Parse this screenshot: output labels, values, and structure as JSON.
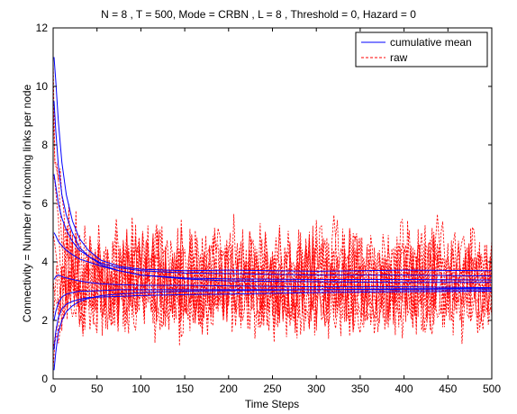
{
  "chart_data": {
    "type": "line",
    "title": "N = 8 , T = 500, Mode = CRBN , L = 8 , Threshold = 0, Hazard = 0",
    "xlabel": "Time Steps",
    "ylabel": "Connectivity = Number of incoming links per node",
    "xlim": [
      0,
      500
    ],
    "ylim": [
      0,
      12
    ],
    "xticks": [
      0,
      50,
      100,
      150,
      200,
      250,
      300,
      350,
      400,
      450,
      500
    ],
    "yticks": [
      0,
      2,
      4,
      6,
      8,
      10,
      12
    ],
    "grid": false,
    "legend_position": "top-right",
    "colors": {
      "cumulative_mean": "#0000ff",
      "raw": "#ff0000",
      "axes": "#000000"
    },
    "series": [
      {
        "name": "cumulative mean",
        "style": "solid",
        "color": "#0000ff",
        "runs": [
          {
            "x": [
              1,
              3,
              6,
              10,
              15,
              22,
              30,
              40,
              55,
              75,
              100,
              150,
              200,
              300,
              400,
              500
            ],
            "y": [
              11.0,
              10.2,
              8.8,
              7.4,
              6.3,
              5.4,
              4.8,
              4.4,
              4.05,
              3.85,
              3.75,
              3.7,
              3.72,
              3.68,
              3.72,
              3.7
            ]
          },
          {
            "x": [
              1,
              3,
              6,
              10,
              15,
              22,
              30,
              40,
              55,
              75,
              100,
              150,
              200,
              300,
              400,
              500
            ],
            "y": [
              9.5,
              8.5,
              7.3,
              6.3,
              5.6,
              5.0,
              4.5,
              4.2,
              3.95,
              3.8,
              3.7,
              3.62,
              3.6,
              3.55,
              3.55,
              3.52
            ]
          },
          {
            "x": [
              1,
              3,
              6,
              10,
              15,
              22,
              30,
              40,
              55,
              75,
              100,
              150,
              200,
              300,
              400,
              500
            ],
            "y": [
              7.0,
              6.6,
              6.0,
              5.5,
              5.1,
              4.7,
              4.4,
              4.2,
              3.9,
              3.7,
              3.55,
              3.45,
              3.42,
              3.4,
              3.4,
              3.38
            ]
          },
          {
            "x": [
              1,
              3,
              6,
              10,
              15,
              22,
              30,
              40,
              55,
              75,
              100,
              150,
              200,
              300,
              400,
              500
            ],
            "y": [
              5.0,
              4.9,
              4.7,
              4.55,
              4.4,
              4.25,
              4.1,
              4.0,
              3.85,
              3.7,
              3.55,
              3.42,
              3.35,
              3.32,
              3.3,
              3.3
            ]
          },
          {
            "x": [
              1,
              3,
              6,
              10,
              15,
              22,
              30,
              40,
              55,
              75,
              100,
              150,
              200,
              300,
              400,
              500
            ],
            "y": [
              3.4,
              3.5,
              3.55,
              3.5,
              3.45,
              3.4,
              3.35,
              3.3,
              3.25,
              3.22,
              3.2,
              3.2,
              3.18,
              3.15,
              3.15,
              3.12
            ]
          },
          {
            "x": [
              1,
              3,
              6,
              10,
              15,
              22,
              30,
              40,
              55,
              75,
              100,
              150,
              200,
              300,
              400,
              500
            ],
            "y": [
              2.0,
              2.3,
              2.6,
              2.8,
              2.9,
              2.95,
              3.0,
              3.0,
              3.02,
              3.05,
              3.05,
              3.05,
              3.05,
              3.05,
              3.05,
              3.05
            ]
          },
          {
            "x": [
              1,
              3,
              6,
              10,
              15,
              22,
              30,
              40,
              55,
              75,
              100,
              150,
              200,
              300,
              400,
              500
            ],
            "y": [
              1.0,
              1.6,
              2.1,
              2.4,
              2.55,
              2.65,
              2.72,
              2.78,
              2.8,
              2.82,
              2.85,
              2.88,
              2.9,
              2.95,
              2.98,
              3.0
            ]
          },
          {
            "x": [
              1,
              3,
              6,
              10,
              15,
              22,
              30,
              40,
              55,
              75,
              100,
              150,
              200,
              300,
              400,
              500
            ],
            "y": [
              0.3,
              0.9,
              1.6,
              2.0,
              2.3,
              2.5,
              2.65,
              2.75,
              2.85,
              2.9,
              2.95,
              3.0,
              3.02,
              3.05,
              3.08,
              3.1
            ]
          }
        ]
      },
      {
        "name": "raw",
        "style": "dashed",
        "color": "#ff0000",
        "runs": [
          {
            "mean": 3.7,
            "amplitude": 1.6,
            "start": 11.0
          },
          {
            "mean": 3.5,
            "amplitude": 1.5,
            "start": 9.5
          },
          {
            "mean": 3.4,
            "amplitude": 1.6,
            "start": 7.0
          },
          {
            "mean": 3.3,
            "amplitude": 1.4,
            "start": 5.0
          },
          {
            "mean": 3.15,
            "amplitude": 1.5,
            "start": 3.4
          },
          {
            "mean": 3.05,
            "amplitude": 1.3,
            "start": 2.0
          },
          {
            "mean": 3.0,
            "amplitude": 1.2,
            "start": 1.0
          },
          {
            "mean": 3.1,
            "amplitude": 1.3,
            "start": 0.3
          }
        ]
      }
    ],
    "legend": [
      {
        "label": "cumulative mean",
        "style": "solid",
        "color": "#0000ff"
      },
      {
        "label": "raw",
        "style": "dashed",
        "color": "#ff0000"
      }
    ]
  }
}
